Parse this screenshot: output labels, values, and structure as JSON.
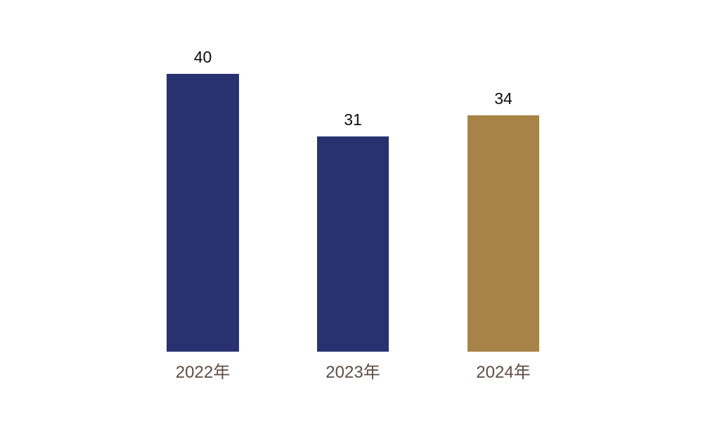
{
  "chart_data": {
    "type": "bar",
    "categories": [
      "2022年",
      "2023年",
      "2024年"
    ],
    "values": [
      40,
      31,
      34
    ],
    "title": "",
    "xlabel": "",
    "ylabel": "",
    "ylim": [
      0,
      40
    ],
    "grid": false,
    "legend": false,
    "axes_visible": false,
    "bar_colors": [
      "#293270",
      "#293270",
      "#a78348"
    ],
    "value_label_color": "#0d0d0d",
    "category_label_color": "#5d4e44",
    "background_color": "#ffffff"
  }
}
